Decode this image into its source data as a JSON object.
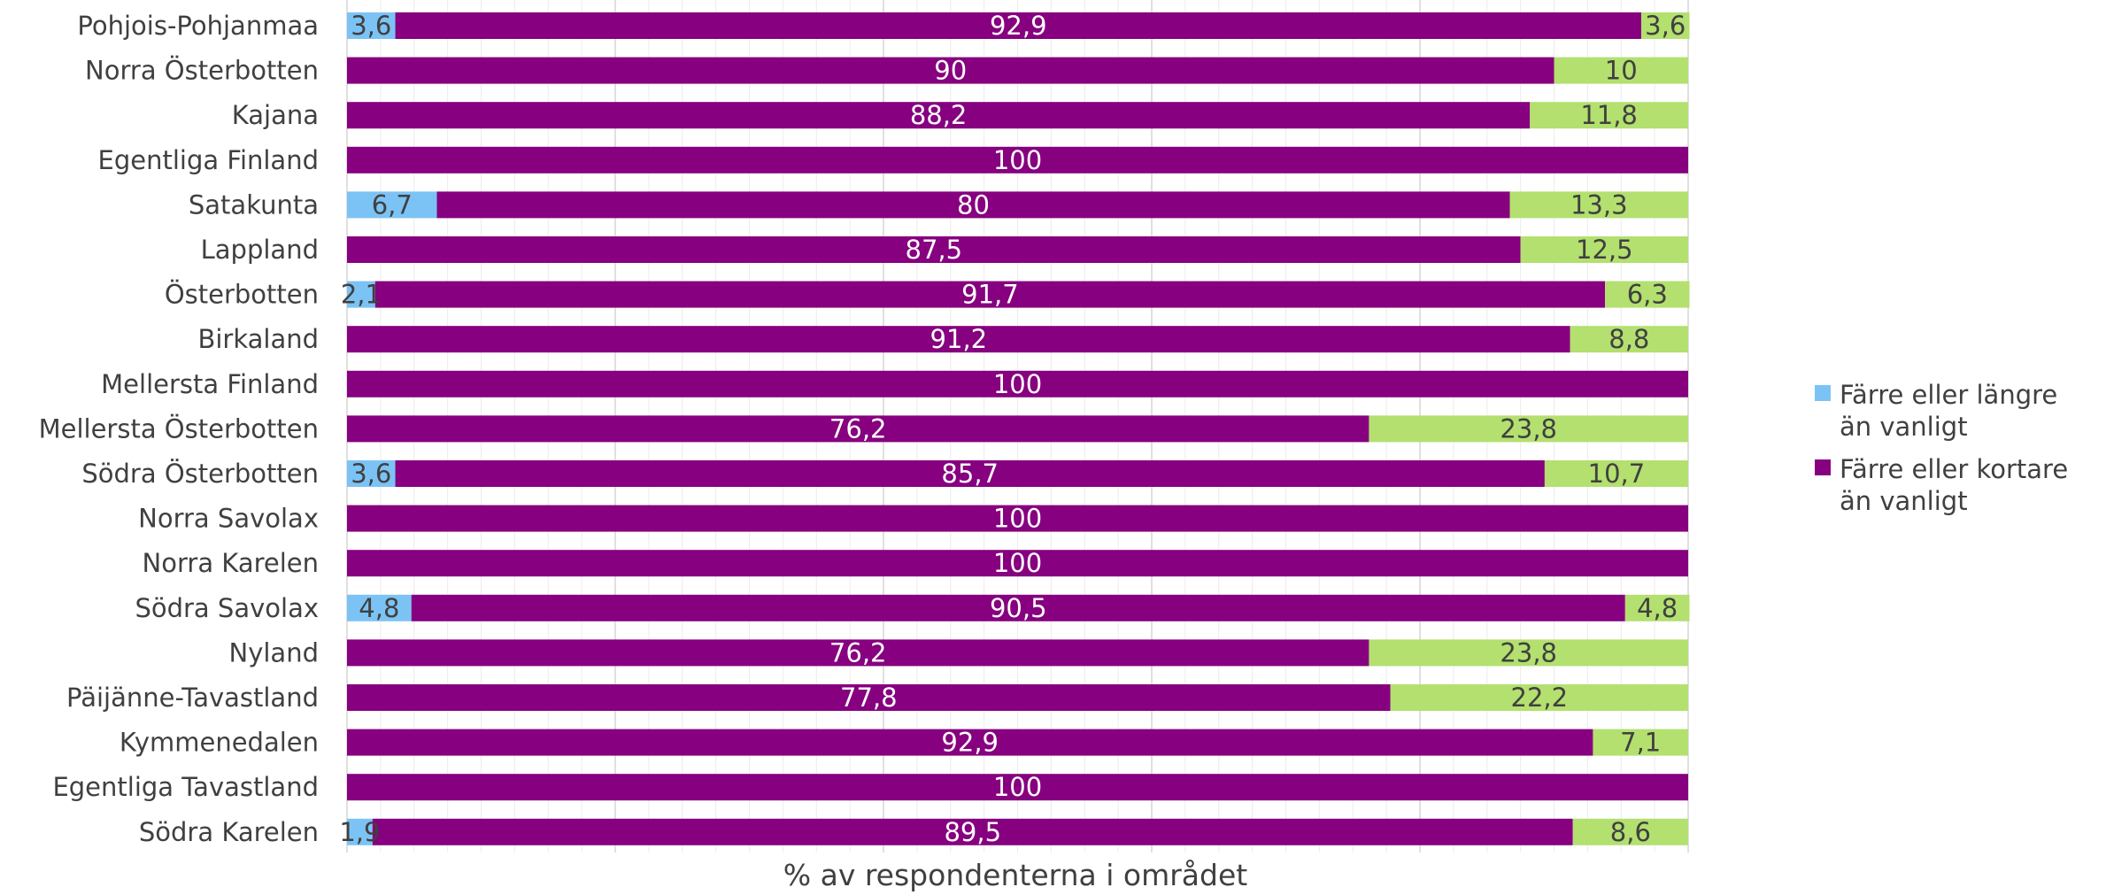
{
  "chart_data": {
    "type": "bar",
    "orientation": "horizontal",
    "stacked": true,
    "xlabel": "% av respondenterna i området",
    "ylabel": "",
    "xlim": [
      0,
      100
    ],
    "grid": true,
    "legend_position": "right",
    "categories": [
      "Pohjois-Pohjanmaa",
      "Norra Österbotten",
      "Kajana",
      "Egentliga Finland",
      "Satakunta",
      "Lappland",
      "Österbotten",
      "Birkaland",
      "Mellersta Finland",
      "Mellersta Österbotten",
      "Södra Österbotten",
      "Norra Savolax",
      "Norra Karelen",
      "Södra Savolax",
      "Nyland",
      "Päijänne-Tavastland",
      "Kymmenedalen",
      "Egentliga Tavastland",
      "Södra Karelen"
    ],
    "series": [
      {
        "name": "Färre eller längre än vanligt",
        "color": "#7cc3f5",
        "values": [
          3.6,
          0,
          0,
          0,
          6.7,
          0,
          2.1,
          0,
          0,
          0,
          3.6,
          0,
          0,
          4.8,
          0,
          0,
          0,
          0,
          1.9
        ],
        "labels": [
          "3,6",
          "",
          "",
          "",
          "6,7",
          "",
          "2,1",
          "",
          "",
          "",
          "3,6",
          "",
          "",
          "4,8",
          "",
          "",
          "",
          "",
          "1,9"
        ]
      },
      {
        "name": "Färre eller kortare än vanligt",
        "color": "#86007f",
        "values": [
          92.9,
          90,
          88.2,
          100,
          80,
          87.5,
          91.7,
          91.2,
          100,
          76.2,
          85.7,
          100,
          100,
          90.5,
          76.2,
          77.8,
          92.9,
          100,
          89.5
        ],
        "labels": [
          "92,9",
          "90",
          "88,2",
          "100",
          "80",
          "87,5",
          "91,7",
          "91,2",
          "100",
          "76,2",
          "85,7",
          "100",
          "100",
          "90,5",
          "76,2",
          "77,8",
          "92,9",
          "100",
          "89,5"
        ]
      },
      {
        "color": "#b3e06f",
        "values": [
          3.6,
          10,
          11.8,
          0,
          13.3,
          12.5,
          6.3,
          8.8,
          0,
          23.8,
          10.7,
          0,
          0,
          4.8,
          23.8,
          22.2,
          7.1,
          0,
          8.6
        ],
        "labels": [
          "3,6",
          "10",
          "11,8",
          "",
          "13,3",
          "12,5",
          "6,3",
          "8,8",
          "",
          "23,8",
          "10,7",
          "",
          "",
          "4,8",
          "23,8",
          "22,2",
          "7,1",
          "",
          "8,6"
        ]
      }
    ],
    "legend": [
      {
        "lines": [
          "Färre eller längre",
          "än vanligt"
        ],
        "color": "#7cc3f5"
      },
      {
        "lines": [
          "Färre eller kortare",
          "än vanligt"
        ],
        "color": "#86007f"
      }
    ]
  }
}
